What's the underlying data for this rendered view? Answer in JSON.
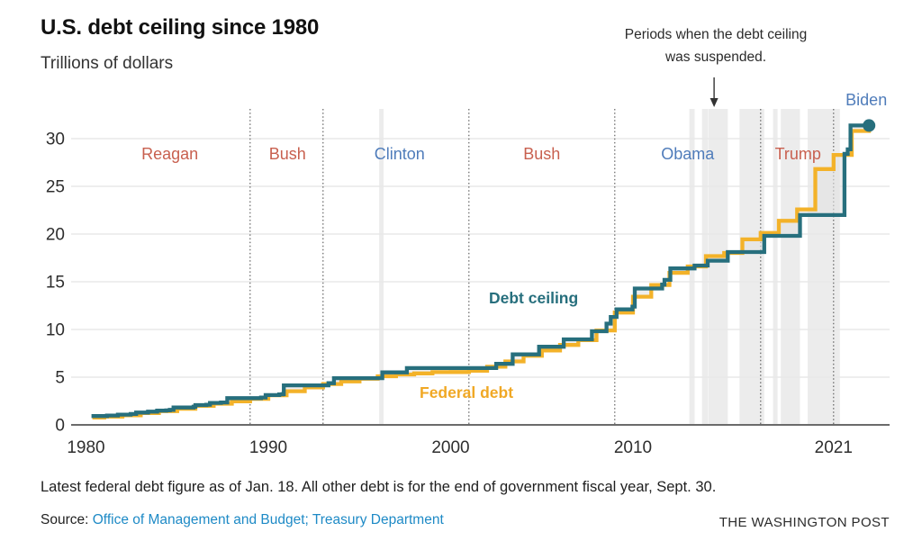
{
  "header": {
    "title": "U.S. debt ceiling since 1980",
    "subtitle": "Trillions of dollars"
  },
  "footer": {
    "note": "Latest federal debt figure as of Jan. 18. All other debt is for the end of government fiscal year, Sept. 30.",
    "source_label": "Source:",
    "source_link": "Office of Management and Budget; Treasury Department",
    "brand": "THE WASHINGTON POST"
  },
  "colors": {
    "ceiling": "#276f7d",
    "debt": "#f3b229",
    "republican_label": "#c8604f",
    "democrat_label": "#4f7cba",
    "suspension_band": "#ececec",
    "gridline": "#e8e8e8",
    "axis_line": "#6b6b6b",
    "divider_dotted": "#555555",
    "gap_fill": "#e3e3e3",
    "link_blue": "#1e8ac6",
    "text_dark": "#111111"
  },
  "chart_data": {
    "type": "line",
    "title": "U.S. debt ceiling since 1980",
    "units_label": "Trillions of dollars",
    "grid": "horizontal",
    "x_ticks": [
      1980,
      1990,
      2000,
      2010,
      2021
    ],
    "y_ticks": [
      0,
      5,
      10,
      15,
      20,
      25,
      30
    ],
    "xlim": [
      1979.6,
      2024.1
    ],
    "ylim": [
      0,
      33.2
    ],
    "annotation": {
      "line1": "Periods when the debt ceiling",
      "line2": "was suspended.",
      "arrow_x_year": 2014.45
    },
    "series": [
      {
        "name": "Debt ceiling",
        "color": "#276f7d",
        "style": "step",
        "end_x": 2022.95,
        "end_dot": true,
        "points": [
          [
            1980.3,
            0.925
          ],
          [
            1981.15,
            0.985
          ],
          [
            1981.75,
            1.08
          ],
          [
            1982.45,
            1.143
          ],
          [
            1982.75,
            1.29
          ],
          [
            1983.4,
            1.389
          ],
          [
            1983.9,
            1.49
          ],
          [
            1984.4,
            1.52
          ],
          [
            1984.6,
            1.573
          ],
          [
            1984.8,
            1.824
          ],
          [
            1985.9,
            1.904
          ],
          [
            1986.0,
            2.079
          ],
          [
            1986.6,
            2.111
          ],
          [
            1986.8,
            2.3
          ],
          [
            1987.4,
            2.352
          ],
          [
            1987.75,
            2.8
          ],
          [
            1989.6,
            2.87
          ],
          [
            1989.85,
            3.123
          ],
          [
            1990.6,
            3.195
          ],
          [
            1990.78,
            3.23
          ],
          [
            1990.85,
            4.145
          ],
          [
            1993.3,
            4.37
          ],
          [
            1993.6,
            4.9
          ],
          [
            1996.25,
            5.5
          ],
          [
            1997.6,
            5.95
          ],
          [
            2002.5,
            6.4
          ],
          [
            2003.4,
            7.384
          ],
          [
            2004.85,
            8.184
          ],
          [
            2006.2,
            8.965
          ],
          [
            2007.75,
            9.815
          ],
          [
            2008.55,
            10.615
          ],
          [
            2008.78,
            11.315
          ],
          [
            2009.1,
            12.104
          ],
          [
            2009.97,
            12.394
          ],
          [
            2010.1,
            14.294
          ],
          [
            2011.6,
            14.694
          ],
          [
            2011.73,
            15.194
          ],
          [
            2012.05,
            16.394
          ],
          [
            2013.38,
            16.699
          ],
          [
            2014.1,
            17.212
          ],
          [
            2015.2,
            18.113
          ],
          [
            2017.2,
            19.809
          ],
          [
            2019.16,
            21.988
          ],
          [
            2021.6,
            28.401
          ],
          [
            2021.78,
            28.881
          ],
          [
            2021.93,
            31.381
          ]
        ]
      },
      {
        "name": "Federal debt",
        "color": "#f3b229",
        "style": "step",
        "end_x": 2023.05,
        "end_dot": false,
        "points": [
          [
            1980.35,
            0.908
          ],
          [
            1981,
            0.998
          ],
          [
            1982,
            1.142
          ],
          [
            1983,
            1.377
          ],
          [
            1984,
            1.572
          ],
          [
            1985,
            1.823
          ],
          [
            1986,
            2.125
          ],
          [
            1987,
            2.35
          ],
          [
            1988,
            2.602
          ],
          [
            1989,
            2.857
          ],
          [
            1990,
            3.233
          ],
          [
            1991,
            3.665
          ],
          [
            1992,
            4.065
          ],
          [
            1993,
            4.411
          ],
          [
            1994,
            4.693
          ],
          [
            1995,
            4.974
          ],
          [
            1996,
            5.225
          ],
          [
            1997,
            5.413
          ],
          [
            1998,
            5.526
          ],
          [
            1999,
            5.656
          ],
          [
            2000,
            5.674
          ],
          [
            2001,
            5.807
          ],
          [
            2002,
            6.228
          ],
          [
            2003,
            6.783
          ],
          [
            2004,
            7.379
          ],
          [
            2005,
            7.933
          ],
          [
            2006,
            8.507
          ],
          [
            2007,
            9.008
          ],
          [
            2008,
            10.025
          ],
          [
            2009,
            11.91
          ],
          [
            2010,
            13.562
          ],
          [
            2011,
            14.79
          ],
          [
            2012,
            16.066
          ],
          [
            2013,
            16.738
          ],
          [
            2014,
            17.824
          ],
          [
            2015,
            18.151
          ],
          [
            2016,
            19.573
          ],
          [
            2017,
            20.245
          ],
          [
            2018,
            21.516
          ],
          [
            2019,
            22.719
          ],
          [
            2020,
            26.945
          ],
          [
            2021,
            28.429
          ],
          [
            2022,
            30.93
          ]
        ]
      }
    ],
    "president_eras": [
      {
        "name": "Reagan",
        "color": "#c8604f",
        "label_x_year": 1984.6
      },
      {
        "name": "Bush",
        "color": "#c8604f",
        "label_x_year": 1991.05
      },
      {
        "name": "Clinton",
        "color": "#4f7cba",
        "label_x_year": 1997.2
      },
      {
        "name": "Bush",
        "color": "#c8604f",
        "label_x_year": 2005.0
      },
      {
        "name": "Obama",
        "color": "#4f7cba",
        "label_x_year": 2013.0
      },
      {
        "name": "Trump",
        "color": "#c8604f",
        "label_x_year": 2019.05
      },
      {
        "name": "Biden",
        "color": "#4f7cba",
        "label_x_year": 2022.8,
        "above_chart": true
      }
    ],
    "era_boundaries": [
      1989,
      1993,
      2001,
      2009,
      2017,
      2021
    ],
    "suspension_bands": [
      [
        1996.08,
        1996.32
      ],
      [
        2013.09,
        2013.38
      ],
      [
        2013.79,
        2014.1
      ],
      [
        2014.12,
        2015.2
      ],
      [
        2015.84,
        2017.2
      ],
      [
        2017.68,
        2017.93
      ],
      [
        2018.11,
        2019.16
      ],
      [
        2019.58,
        2021.35
      ]
    ]
  }
}
